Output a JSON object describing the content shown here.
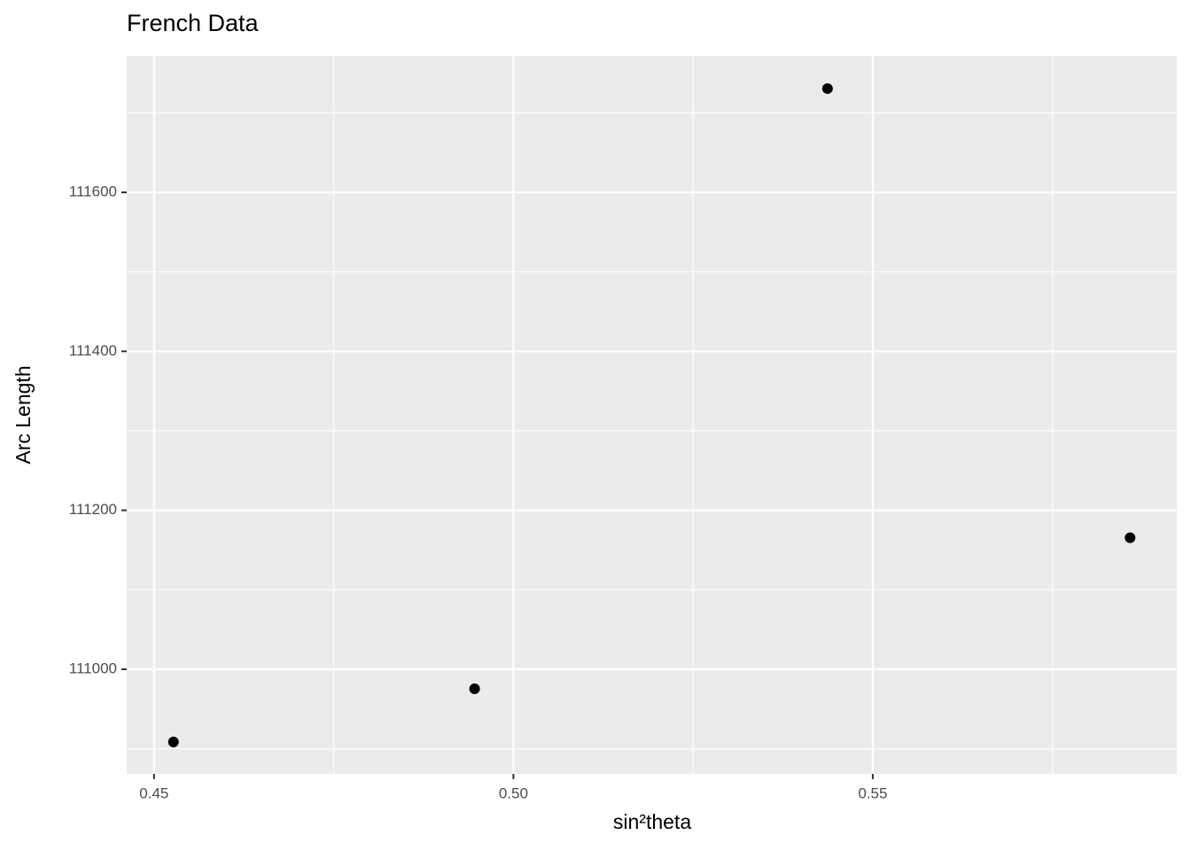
{
  "chart_data": {
    "type": "scatter",
    "title": "French Data",
    "x_label": "sin²theta",
    "y_label": "Arc Length",
    "x": [
      0.4527,
      0.4946,
      0.5437,
      0.5858
    ],
    "values": [
      110908.6,
      110975.5,
      111730.5,
      111165.4
    ],
    "color": "#000000",
    "xlim": [
      0.4462,
      0.5923
    ],
    "xticks": [
      0.45,
      {
        "value": 0.5,
        "label": "0.50"
      },
      0.55
    ],
    "x_minor_ticks": [
      0.475,
      0.525,
      0.575
    ],
    "ylim": [
      110868.4,
      111771.7
    ],
    "yticks": [
      111000,
      111200,
      111400,
      111600
    ],
    "y_minor_ticks": [
      110900,
      111100,
      111300,
      111500,
      111700
    ],
    "grid": true
  }
}
